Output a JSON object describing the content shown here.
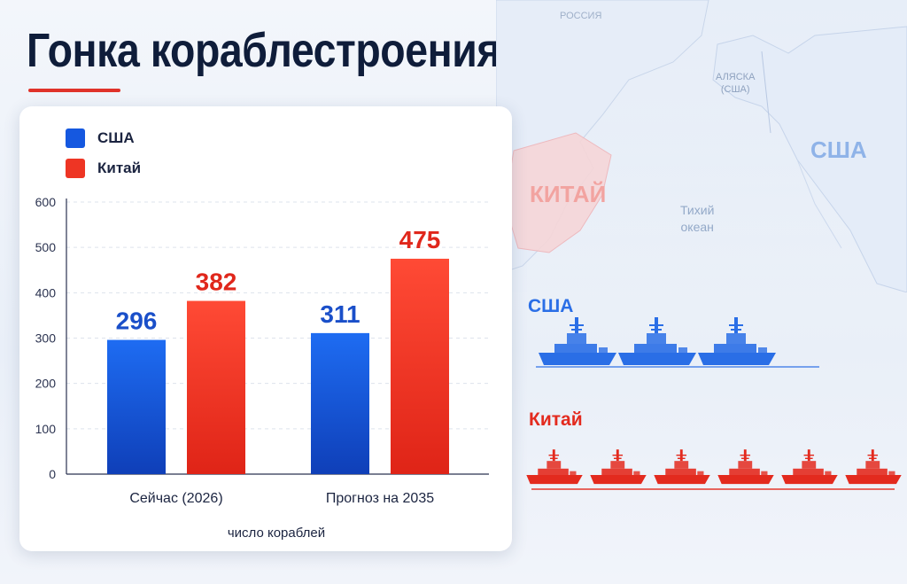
{
  "title": "Гонка кораблестроения",
  "legend": [
    {
      "label": "США",
      "color": "#1558e0"
    },
    {
      "label": "Китай",
      "color": "#ee3524"
    }
  ],
  "map_labels": {
    "russia": "РОССИЯ",
    "alaska_line1": "АЛЯСКА",
    "alaska_line2": "(США)",
    "usa": "США",
    "china": "КИТАЙ",
    "ocean_line1": "Тихий",
    "ocean_line2": "океан"
  },
  "fleets": {
    "usa": {
      "label": "США",
      "ship_icons": 3,
      "color": "#2a6ee6"
    },
    "china": {
      "label": "Китай",
      "ship_icons": 6,
      "color": "#e32a1e"
    }
  },
  "chart_data": {
    "type": "bar",
    "categories": [
      "Сейчас (2026)",
      "Прогноз на 2035"
    ],
    "series": [
      {
        "name": "США",
        "values": [
          296,
          311
        ],
        "color": "#1558e0"
      },
      {
        "name": "Китай",
        "values": [
          382,
          475
        ],
        "color": "#ee3524"
      }
    ],
    "xlabel": "число кораблей",
    "ylabel": "",
    "ylim": [
      0,
      600
    ],
    "yticks": [
      0,
      100,
      200,
      300,
      400,
      500,
      600
    ],
    "grid": true,
    "legend_position": "top-left"
  }
}
